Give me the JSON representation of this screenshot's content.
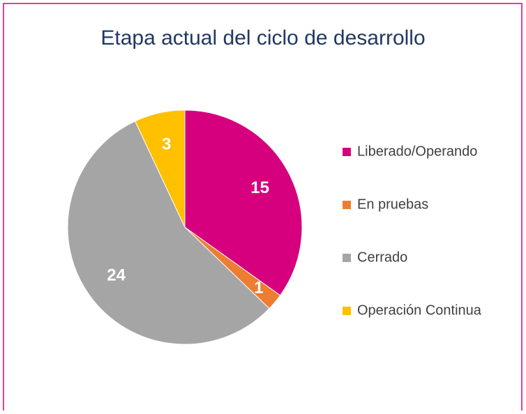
{
  "chart_data": {
    "type": "pie",
    "title": "Etapa actual del ciclo de desarrollo",
    "categories": [
      "Liberado/Operando",
      "En pruebas",
      "Cerrado",
      "Operación Continua"
    ],
    "values": [
      15,
      1,
      24,
      3
    ],
    "colors": [
      "#d6007e",
      "#ed7d31",
      "#a5a5a5",
      "#ffc000"
    ],
    "legend": "right"
  }
}
